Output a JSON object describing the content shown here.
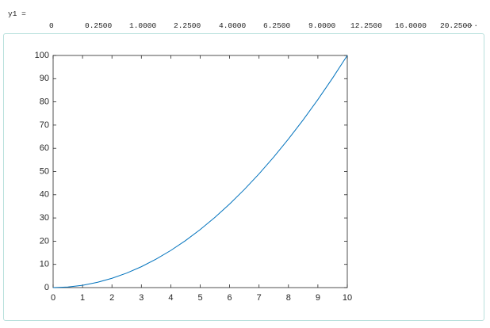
{
  "output": {
    "variable": "y1 =",
    "values": [
      "0",
      "0.2500",
      "1.0000",
      "2.2500",
      "4.0000",
      "6.2500",
      "9.0000",
      "12.2500",
      "16.0000",
      "20.2500"
    ],
    "ellipsis": "···"
  },
  "chart_data": {
    "type": "line",
    "x": [
      0,
      0.5,
      1,
      1.5,
      2,
      2.5,
      3,
      3.5,
      4,
      4.5,
      5,
      5.5,
      6,
      6.5,
      7,
      7.5,
      8,
      8.5,
      9,
      9.5,
      10
    ],
    "values": [
      0,
      0.25,
      1,
      2.25,
      4,
      6.25,
      9,
      12.25,
      16,
      20.25,
      25,
      30.25,
      36,
      42.25,
      49,
      56.25,
      64,
      72.25,
      81,
      90.25,
      100
    ],
    "color": "#0072bd",
    "xlim": [
      0,
      10
    ],
    "ylim": [
      0,
      100
    ],
    "xticks": [
      0,
      1,
      2,
      3,
      4,
      5,
      6,
      7,
      8,
      9,
      10
    ],
    "yticks": [
      0,
      10,
      20,
      30,
      40,
      50,
      60,
      70,
      80,
      90,
      100
    ],
    "grid": false
  }
}
